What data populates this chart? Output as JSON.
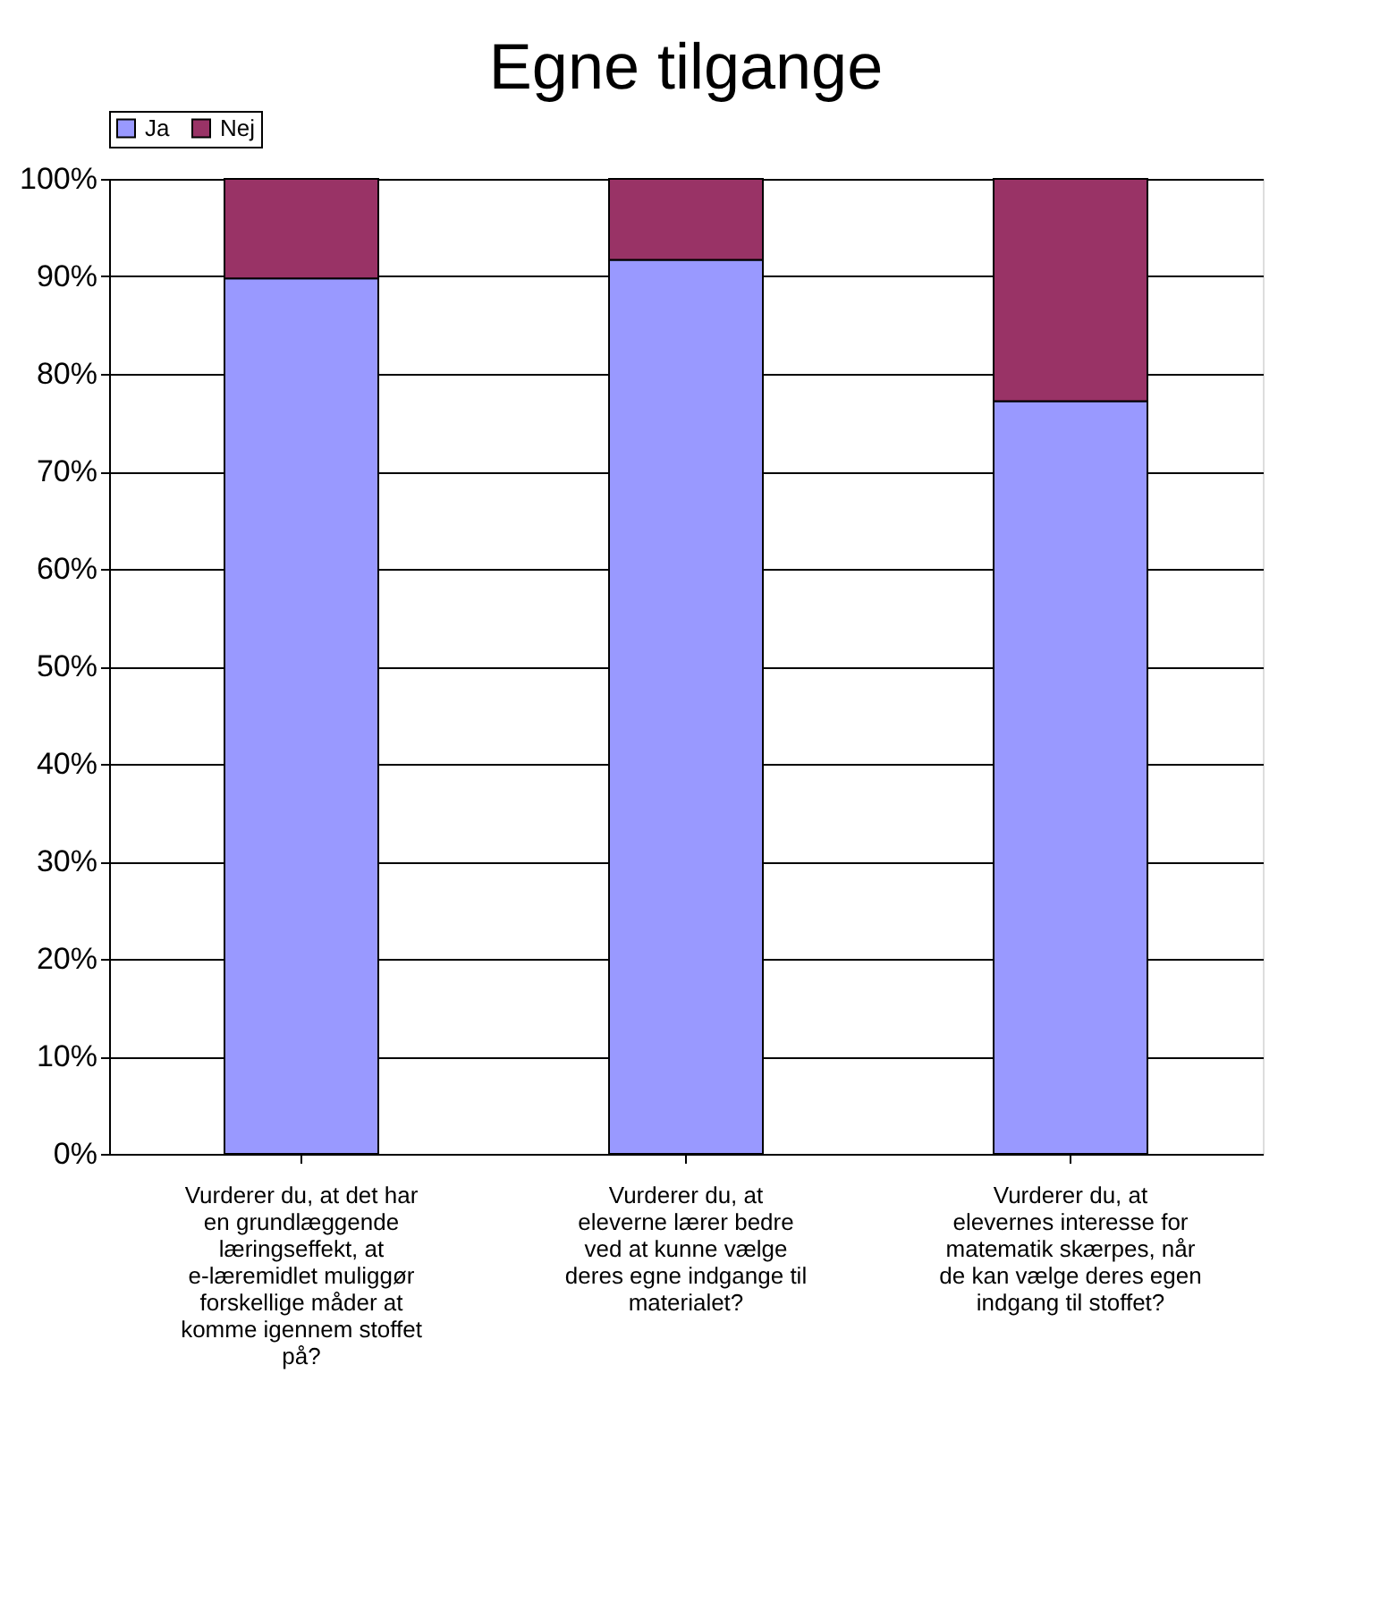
{
  "chart_data": {
    "type": "bar",
    "title": "Egne tilgange",
    "stacked": true,
    "legend": "top",
    "categories": [
      "Vurderer du, at det har en grundlæggende læringseffekt, at e-læremidlet muliggør forskellige måder at komme igennem stoffet på?",
      "Vurderer du, at eleverne lærer bedre ved at kunne vælge deres egne indgange til materialet?",
      "Vurderer du, at elevernes interesse for matematik skærpes, når de kan vælge deres egen indgang til stoffet?"
    ],
    "series": [
      {
        "name": "Ja",
        "color": "#9999ff",
        "values": [
          89.8,
          91.7,
          77.2
        ]
      },
      {
        "name": "Nej",
        "color": "#993366",
        "values": [
          10.2,
          8.3,
          22.8
        ]
      }
    ],
    "ylim": [
      0,
      100
    ],
    "yticks": [
      {
        "value": 0,
        "label": "0%"
      },
      {
        "value": 10,
        "label": "10%"
      },
      {
        "value": 20,
        "label": "20%"
      },
      {
        "value": 30,
        "label": "30%"
      },
      {
        "value": 40,
        "label": "40%"
      },
      {
        "value": 50,
        "label": "50%"
      },
      {
        "value": 60,
        "label": "60%"
      },
      {
        "value": 70,
        "label": "70%"
      },
      {
        "value": 80,
        "label": "80%"
      },
      {
        "value": 90,
        "label": "90%"
      },
      {
        "value": 100,
        "label": "100%"
      }
    ],
    "grid": "y"
  }
}
